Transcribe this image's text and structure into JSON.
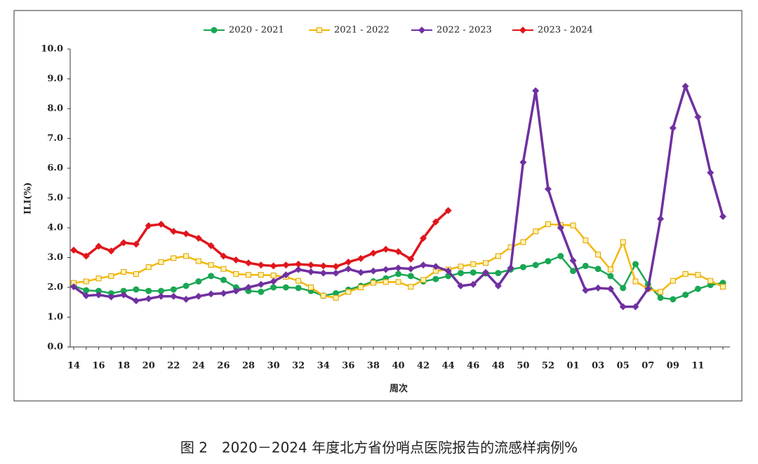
{
  "chart_data": {
    "type": "line",
    "caption": "图 2　2020－2024 年度北方省份哨点医院报告的流感样病例%",
    "ylabel": "ILI(%)",
    "xlabel": "周次",
    "categories": [
      "14",
      null,
      "16",
      null,
      "18",
      null,
      "20",
      null,
      "22",
      null,
      "24",
      null,
      "26",
      null,
      "28",
      null,
      "30",
      null,
      "32",
      null,
      "34",
      null,
      "36",
      null,
      "38",
      null,
      "40",
      null,
      "42",
      null,
      "44",
      null,
      "46",
      null,
      "48",
      null,
      "50",
      null,
      "52",
      null,
      "01",
      null,
      "03",
      null,
      "05",
      null,
      "07",
      null,
      "09",
      null,
      "11",
      null,
      null
    ],
    "ylim": [
      0,
      10
    ],
    "yticks": [
      {
        "value": 0,
        "label": "0.0"
      },
      {
        "value": 1,
        "label": "1.0"
      },
      {
        "value": 2,
        "label": "2.0"
      },
      {
        "value": 3,
        "label": "3.0"
      },
      {
        "value": 4,
        "label": "4.0"
      },
      {
        "value": 5,
        "label": "5.0"
      },
      {
        "value": 6,
        "label": "6.0"
      },
      {
        "value": 7,
        "label": "7.0"
      },
      {
        "value": 8,
        "label": "8.0"
      },
      {
        "value": 9,
        "label": "9.0"
      },
      {
        "value": 10,
        "label": "10.0"
      }
    ],
    "legend": "top",
    "series": [
      {
        "name": "2020 - 2021",
        "color": "#1aa653",
        "marker": "circle",
        "values": [
          2.05,
          1.9,
          1.88,
          1.8,
          1.88,
          1.93,
          1.88,
          1.88,
          1.93,
          2.05,
          2.2,
          2.38,
          2.25,
          2.0,
          1.88,
          1.85,
          2.0,
          2.0,
          1.98,
          1.88,
          1.72,
          1.8,
          1.92,
          2.05,
          2.2,
          2.3,
          2.45,
          2.38,
          2.2,
          2.28,
          2.38,
          2.48,
          2.5,
          2.47,
          2.48,
          2.6,
          2.68,
          2.75,
          2.88,
          3.05,
          2.55,
          2.72,
          2.62,
          2.38,
          1.98,
          2.78,
          2.1,
          1.65,
          1.6,
          1.75,
          1.95,
          2.08,
          2.15
        ]
      },
      {
        "name": "2021 - 2022",
        "color": "#f5b800",
        "marker": "square",
        "values": [
          2.15,
          2.2,
          2.3,
          2.38,
          2.52,
          2.45,
          2.68,
          2.85,
          2.98,
          3.05,
          2.88,
          2.75,
          2.62,
          2.45,
          2.42,
          2.42,
          2.4,
          2.35,
          2.22,
          2.0,
          1.72,
          1.65,
          1.85,
          2.0,
          2.15,
          2.18,
          2.18,
          2.02,
          2.25,
          2.55,
          2.6,
          2.7,
          2.78,
          2.82,
          3.05,
          3.35,
          3.52,
          3.88,
          4.12,
          4.1,
          4.08,
          3.58,
          3.1,
          2.6,
          3.52,
          2.2,
          1.95,
          1.85,
          2.22,
          2.45,
          2.42,
          2.22,
          2.02
        ]
      },
      {
        "name": "2022 - 2023",
        "color": "#7030a0",
        "marker": "diamond",
        "values": [
          2.02,
          1.72,
          1.75,
          1.68,
          1.75,
          1.55,
          1.62,
          1.7,
          1.7,
          1.6,
          1.7,
          1.78,
          1.8,
          1.88,
          2.0,
          2.1,
          2.2,
          2.42,
          2.6,
          2.52,
          2.48,
          2.48,
          2.62,
          2.5,
          2.55,
          2.6,
          2.65,
          2.62,
          2.75,
          2.7,
          2.55,
          2.05,
          2.1,
          2.5,
          2.05,
          2.65,
          6.2,
          8.6,
          5.3,
          4.0,
          2.9,
          1.9,
          1.98,
          1.95,
          1.35,
          1.35,
          1.95,
          4.3,
          7.35,
          8.75,
          7.72,
          5.85,
          4.38
        ]
      },
      {
        "name": "2023 - 2024",
        "color": "#e0161c",
        "marker": "diamond",
        "values": [
          3.25,
          3.05,
          3.38,
          3.22,
          3.5,
          3.45,
          4.07,
          4.12,
          3.88,
          3.8,
          3.65,
          3.4,
          3.05,
          2.92,
          2.82,
          2.75,
          2.72,
          2.75,
          2.78,
          2.75,
          2.72,
          2.7,
          2.85,
          2.97,
          3.15,
          3.28,
          3.2,
          2.95,
          3.65,
          4.2,
          4.58,
          null,
          null,
          null,
          null,
          null,
          null,
          null,
          null,
          null,
          null,
          null,
          null,
          null,
          null,
          null,
          null,
          null,
          null,
          null,
          null,
          null,
          null
        ]
      }
    ]
  }
}
